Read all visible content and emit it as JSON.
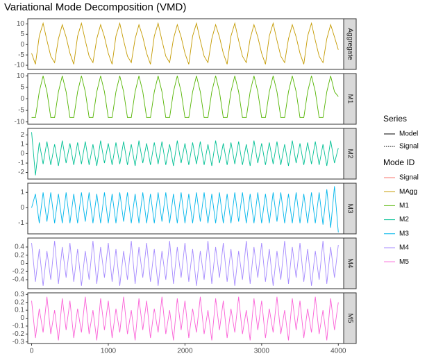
{
  "chart_data": {
    "type": "line",
    "title": "Variational Mode Decomposition (VMD)",
    "x": [
      0,
      50,
      100,
      150,
      200,
      250,
      300,
      350,
      400,
      450,
      500,
      550,
      600,
      650,
      700,
      750,
      800,
      850,
      900,
      950,
      1000,
      1050,
      1100,
      1150,
      1200,
      1250,
      1300,
      1350,
      1400,
      1450,
      1500,
      1550,
      1600,
      1650,
      1700,
      1750,
      1800,
      1850,
      1900,
      1950,
      2000,
      2050,
      2100,
      2150,
      2200,
      2250,
      2300,
      2350,
      2400,
      2450,
      2500,
      2550,
      2600,
      2650,
      2700,
      2750,
      2800,
      2850,
      2900,
      2950,
      3000,
      3050,
      3100,
      3150,
      3200,
      3250,
      3300,
      3350,
      3400,
      3450,
      3500,
      3550,
      3600,
      3650,
      3700,
      3750,
      3800,
      3850,
      3900,
      3950,
      4000
    ],
    "xlim": [
      -50,
      4070
    ],
    "xticks": [
      0,
      1000,
      2000,
      3000,
      4000
    ],
    "facets": [
      {
        "label": "Aggregate",
        "ylim": [
          -12,
          12.5
        ],
        "yticks": [
          -10,
          -5,
          0,
          5,
          10
        ],
        "series": [
          {
            "color": "#C49A00",
            "values": [
              -4.2,
              -9.5,
              4.1,
              10.3,
              2.0,
              -5.6,
              -8.7,
              2.8,
              9.6,
              3.7,
              -4.2,
              -9.5,
              4.1,
              10.3,
              2.0,
              -5.6,
              -8.7,
              2.8,
              9.6,
              3.7,
              -4.2,
              -9.5,
              4.1,
              10.3,
              2.0,
              -5.6,
              -8.7,
              2.8,
              9.6,
              3.7,
              -4.2,
              -9.5,
              4.1,
              10.3,
              2.0,
              -5.6,
              -8.7,
              2.8,
              9.6,
              3.7,
              -4.2,
              -9.5,
              4.1,
              10.3,
              2.0,
              -5.6,
              -8.7,
              2.8,
              9.6,
              3.7,
              -4.2,
              -9.5,
              4.1,
              10.3,
              2.0,
              -5.6,
              -8.7,
              2.8,
              9.6,
              3.7,
              -4.2,
              -9.5,
              4.1,
              10.3,
              2.0,
              -5.6,
              -8.7,
              2.8,
              9.6,
              3.7,
              -4.2,
              -9.5,
              4.1,
              10.3,
              2.0,
              -5.6,
              -8.7,
              2.8,
              9.6,
              3.7,
              -2.5
            ]
          }
        ]
      },
      {
        "label": "M1",
        "ylim": [
          -11,
          11
        ],
        "yticks": [
          -10,
          -5,
          0,
          5,
          10
        ],
        "series": [
          {
            "color": "#53B400",
            "values": [
              -8.1,
              -8.1,
              3.1,
              10,
              3.1,
              -8.1,
              -8.1,
              3.1,
              10,
              3.1,
              -8.1,
              -8.1,
              3.1,
              10,
              3.1,
              -8.1,
              -8.1,
              3.1,
              10,
              3.1,
              -8.1,
              -8.1,
              3.1,
              10,
              3.1,
              -8.1,
              -8.1,
              3.1,
              10,
              3.1,
              -8.1,
              -8.1,
              3.1,
              10,
              3.1,
              -8.1,
              -8.1,
              3.1,
              10,
              3.1,
              -8.1,
              -8.1,
              3.1,
              10,
              3.1,
              -8.1,
              -8.1,
              3.1,
              10,
              3.1,
              -8.1,
              -8.1,
              3.1,
              10,
              3.1,
              -8.1,
              -8.1,
              3.1,
              10,
              3.1,
              -8.1,
              -8.1,
              3.1,
              10,
              3.1,
              -8.1,
              -8.1,
              3.1,
              10,
              3.1,
              -8.1,
              -8.1,
              3.1,
              10,
              3.1,
              -8.1,
              -8.1,
              3.1,
              10,
              3.1,
              1.0
            ]
          }
        ]
      },
      {
        "label": "M2",
        "ylim": [
          -2.7,
          2.7
        ],
        "yticks": [
          -2,
          -1,
          0,
          1,
          2
        ],
        "series": [
          {
            "color": "#00C094",
            "values": [
              2.3,
              -2.3,
              1.2,
              -1.1,
              1.3,
              -1.2,
              1.0,
              -1.3,
              1.4,
              -1.0,
              1.1,
              -1.2,
              1.2,
              -1.1,
              1.3,
              -1.2,
              1.0,
              -1.3,
              1.4,
              -1.0,
              1.1,
              -1.2,
              1.2,
              -1.1,
              1.3,
              -1.2,
              1.0,
              -1.3,
              1.4,
              -1.0,
              1.1,
              -1.2,
              1.2,
              -1.1,
              1.3,
              -1.2,
              1.0,
              -1.3,
              1.4,
              -1.0,
              1.1,
              -1.2,
              1.2,
              -1.1,
              1.3,
              -1.2,
              1.0,
              -1.3,
              1.4,
              -1.0,
              1.1,
              -1.2,
              1.2,
              -1.1,
              1.3,
              -1.2,
              1.0,
              -1.3,
              1.4,
              -1.0,
              1.1,
              -1.2,
              1.2,
              -1.1,
              1.3,
              -1.2,
              1.0,
              -1.3,
              1.4,
              -1.0,
              1.1,
              -1.2,
              1.2,
              -1.1,
              1.3,
              -1.2,
              1.0,
              -1.3,
              1.4,
              -1.0,
              0.6
            ]
          }
        ]
      },
      {
        "label": "M3",
        "ylim": [
          -1.7,
          1.6
        ],
        "yticks": [
          -1,
          0,
          1
        ],
        "series": [
          {
            "color": "#00B6EB",
            "values": [
              0.0,
              0.9,
              -1.0,
              1.0,
              -0.9,
              1.0,
              -1.0,
              0.9,
              -1.0,
              1.0,
              -1.0,
              0.9,
              -1.0,
              1.0,
              -0.9,
              1.0,
              -1.0,
              0.9,
              -1.0,
              1.0,
              -1.0,
              0.9,
              -1.0,
              1.0,
              -0.9,
              1.0,
              -1.0,
              0.9,
              -1.0,
              1.0,
              -1.0,
              0.9,
              -1.0,
              1.0,
              -0.9,
              1.0,
              -1.0,
              0.9,
              -1.0,
              1.0,
              -1.0,
              0.9,
              -1.0,
              1.0,
              -0.9,
              1.0,
              -1.0,
              0.9,
              -1.0,
              1.0,
              -1.0,
              0.9,
              -1.0,
              1.0,
              -0.9,
              1.0,
              -1.0,
              0.9,
              -1.0,
              1.0,
              -1.0,
              0.9,
              -1.0,
              1.0,
              -0.9,
              1.0,
              -1.0,
              0.9,
              -1.0,
              1.0,
              -1.0,
              0.9,
              -1.0,
              1.0,
              -1.0,
              1.0,
              -1.1,
              1.2,
              -1.3,
              1.4,
              -1.6
            ]
          }
        ]
      },
      {
        "label": "M4",
        "ylim": [
          -0.62,
          0.62
        ],
        "yticks": [
          -0.4,
          -0.2,
          0,
          0.2,
          0.4
        ],
        "series": [
          {
            "color": "#A58AFF",
            "values": [
              0.5,
              -0.45,
              0.35,
              -0.55,
              0.3,
              -0.4,
              0.55,
              -0.5,
              0.4,
              -0.35,
              0.5,
              -0.45,
              0.35,
              -0.55,
              0.3,
              -0.4,
              0.55,
              -0.5,
              0.4,
              -0.35,
              0.5,
              -0.45,
              0.35,
              -0.55,
              0.3,
              -0.4,
              0.55,
              -0.5,
              0.4,
              -0.35,
              0.5,
              -0.45,
              0.35,
              -0.55,
              0.3,
              -0.4,
              0.55,
              -0.5,
              0.4,
              -0.35,
              0.5,
              -0.45,
              0.35,
              -0.55,
              0.3,
              -0.4,
              0.55,
              -0.5,
              0.4,
              -0.35,
              0.5,
              -0.45,
              0.35,
              -0.55,
              0.3,
              -0.4,
              0.55,
              -0.5,
              0.4,
              -0.35,
              0.5,
              -0.45,
              0.35,
              -0.55,
              0.3,
              -0.4,
              0.55,
              -0.5,
              0.4,
              -0.35,
              0.5,
              -0.45,
              0.35,
              -0.55,
              0.3,
              -0.4,
              0.55,
              -0.5,
              0.4,
              -0.35,
              0.45
            ]
          }
        ]
      },
      {
        "label": "M5",
        "ylim": [
          -0.32,
          0.32
        ],
        "yticks": [
          -0.3,
          -0.2,
          -0.1,
          0,
          0.1,
          0.2,
          0.3
        ],
        "series": [
          {
            "color": "#FB61D7",
            "values": [
              0.22,
              -0.25,
              0.12,
              -0.18,
              0.27,
              -0.2,
              0.1,
              -0.28,
              0.25,
              -0.15,
              0.22,
              -0.25,
              0.12,
              -0.18,
              0.27,
              -0.2,
              0.1,
              -0.28,
              0.25,
              -0.15,
              0.22,
              -0.25,
              0.12,
              -0.18,
              0.27,
              -0.2,
              0.1,
              -0.28,
              0.25,
              -0.15,
              0.22,
              -0.25,
              0.12,
              -0.18,
              0.27,
              -0.2,
              0.1,
              -0.28,
              0.25,
              -0.15,
              0.22,
              -0.25,
              0.12,
              -0.18,
              0.27,
              -0.2,
              0.1,
              -0.28,
              0.25,
              -0.15,
              0.22,
              -0.25,
              0.12,
              -0.18,
              0.27,
              -0.2,
              0.1,
              -0.28,
              0.25,
              -0.15,
              0.22,
              -0.25,
              0.12,
              -0.18,
              0.27,
              -0.2,
              0.1,
              -0.28,
              0.25,
              -0.15,
              0.22,
              -0.25,
              0.12,
              -0.18,
              0.27,
              -0.2,
              0.1,
              -0.28,
              0.25,
              -0.15,
              0.2
            ]
          }
        ]
      }
    ],
    "legends": [
      {
        "title": "Series",
        "entries": [
          {
            "name": "Model",
            "color": "#000000",
            "dash": "solid"
          },
          {
            "name": "Signal",
            "color": "#000000",
            "dash": "dotted"
          }
        ]
      },
      {
        "title": "Mode ID",
        "entries": [
          {
            "name": "Signal",
            "color": "#F8766D",
            "dash": "solid"
          },
          {
            "name": "MAgg",
            "color": "#C49A00",
            "dash": "solid"
          },
          {
            "name": "M1",
            "color": "#53B400",
            "dash": "solid"
          },
          {
            "name": "M2",
            "color": "#00C094",
            "dash": "solid"
          },
          {
            "name": "M3",
            "color": "#00B6EB",
            "dash": "solid"
          },
          {
            "name": "M4",
            "color": "#A58AFF",
            "dash": "solid"
          },
          {
            "name": "M5",
            "color": "#FB61D7",
            "dash": "solid"
          }
        ]
      }
    ]
  }
}
